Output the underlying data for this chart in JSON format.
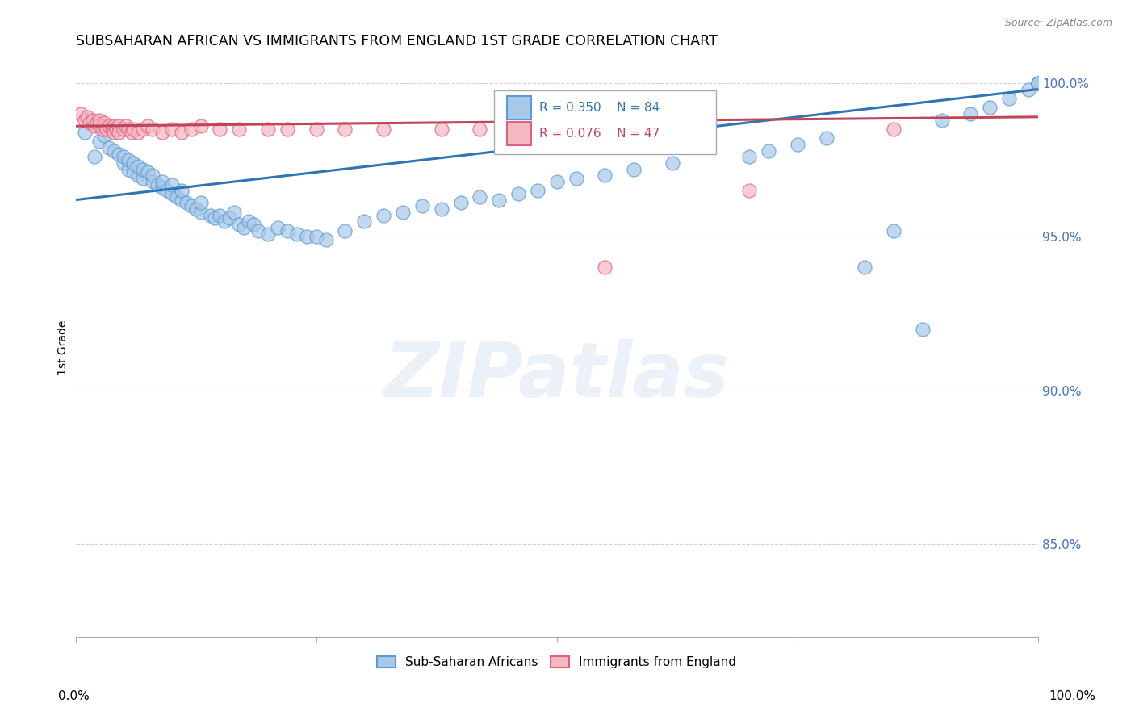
{
  "title": "SUBSAHARAN AFRICAN VS IMMIGRANTS FROM ENGLAND 1ST GRADE CORRELATION CHART",
  "source": "Source: ZipAtlas.com",
  "ylabel": "1st Grade",
  "xlim": [
    0.0,
    1.0
  ],
  "ylim": [
    0.82,
    1.008
  ],
  "legend_blue_label": "Sub-Saharan Africans",
  "legend_pink_label": "Immigrants from England",
  "r_blue": 0.35,
  "n_blue": 84,
  "r_pink": 0.076,
  "n_pink": 47,
  "blue_color": "#a8c8e8",
  "blue_edge_color": "#5b9bd5",
  "pink_color": "#f4b8c1",
  "pink_edge_color": "#e06080",
  "blue_line_color": "#2e75b6",
  "pink_line_color": "#c0445a",
  "watermark": "ZIPatlas",
  "blue_scatter_x": [
    0.01,
    0.02,
    0.025,
    0.03,
    0.035,
    0.04,
    0.045,
    0.05,
    0.05,
    0.055,
    0.055,
    0.06,
    0.06,
    0.065,
    0.065,
    0.07,
    0.07,
    0.075,
    0.08,
    0.08,
    0.085,
    0.09,
    0.09,
    0.095,
    0.1,
    0.1,
    0.105,
    0.11,
    0.11,
    0.115,
    0.12,
    0.125,
    0.13,
    0.13,
    0.14,
    0.145,
    0.15,
    0.155,
    0.16,
    0.165,
    0.17,
    0.175,
    0.18,
    0.185,
    0.19,
    0.2,
    0.21,
    0.22,
    0.23,
    0.24,
    0.25,
    0.26,
    0.28,
    0.3,
    0.32,
    0.34,
    0.36,
    0.38,
    0.4,
    0.42,
    0.44,
    0.46,
    0.48,
    0.5,
    0.52,
    0.55,
    0.58,
    0.62,
    0.7,
    0.72,
    0.75,
    0.78,
    0.82,
    0.85,
    0.88,
    0.9,
    0.93,
    0.95,
    0.97,
    0.99,
    1.0,
    1.0,
    1.0,
    1.0
  ],
  "blue_scatter_y": [
    0.984,
    0.976,
    0.981,
    0.983,
    0.979,
    0.978,
    0.977,
    0.974,
    0.976,
    0.972,
    0.975,
    0.971,
    0.974,
    0.97,
    0.973,
    0.969,
    0.972,
    0.971,
    0.968,
    0.97,
    0.967,
    0.966,
    0.968,
    0.965,
    0.964,
    0.967,
    0.963,
    0.962,
    0.965,
    0.961,
    0.96,
    0.959,
    0.958,
    0.961,
    0.957,
    0.956,
    0.957,
    0.955,
    0.956,
    0.958,
    0.954,
    0.953,
    0.955,
    0.954,
    0.952,
    0.951,
    0.953,
    0.952,
    0.951,
    0.95,
    0.95,
    0.949,
    0.952,
    0.955,
    0.957,
    0.958,
    0.96,
    0.959,
    0.961,
    0.963,
    0.962,
    0.964,
    0.965,
    0.968,
    0.969,
    0.97,
    0.972,
    0.974,
    0.976,
    0.978,
    0.98,
    0.982,
    0.94,
    0.952,
    0.92,
    0.988,
    0.99,
    0.992,
    0.995,
    0.998,
    1.0,
    1.0,
    1.0,
    1.0
  ],
  "pink_scatter_x": [
    0.005,
    0.01,
    0.012,
    0.015,
    0.018,
    0.02,
    0.022,
    0.025,
    0.025,
    0.028,
    0.03,
    0.03,
    0.032,
    0.035,
    0.038,
    0.04,
    0.04,
    0.042,
    0.045,
    0.045,
    0.05,
    0.052,
    0.055,
    0.058,
    0.06,
    0.065,
    0.07,
    0.075,
    0.08,
    0.09,
    0.1,
    0.11,
    0.12,
    0.13,
    0.15,
    0.17,
    0.2,
    0.22,
    0.25,
    0.28,
    0.32,
    0.38,
    0.42,
    0.48,
    0.55,
    0.7,
    0.85
  ],
  "pink_scatter_y": [
    0.99,
    0.988,
    0.989,
    0.987,
    0.988,
    0.986,
    0.987,
    0.986,
    0.988,
    0.985,
    0.986,
    0.987,
    0.985,
    0.986,
    0.985,
    0.986,
    0.984,
    0.985,
    0.986,
    0.984,
    0.985,
    0.986,
    0.985,
    0.984,
    0.985,
    0.984,
    0.985,
    0.986,
    0.985,
    0.984,
    0.985,
    0.984,
    0.985,
    0.986,
    0.985,
    0.985,
    0.985,
    0.985,
    0.985,
    0.985,
    0.985,
    0.985,
    0.985,
    0.985,
    0.94,
    0.965,
    0.985
  ],
  "blue_trendline_start_y": 0.962,
  "blue_trendline_end_y": 0.998,
  "pink_trendline_start_y": 0.986,
  "pink_trendline_end_y": 0.989
}
